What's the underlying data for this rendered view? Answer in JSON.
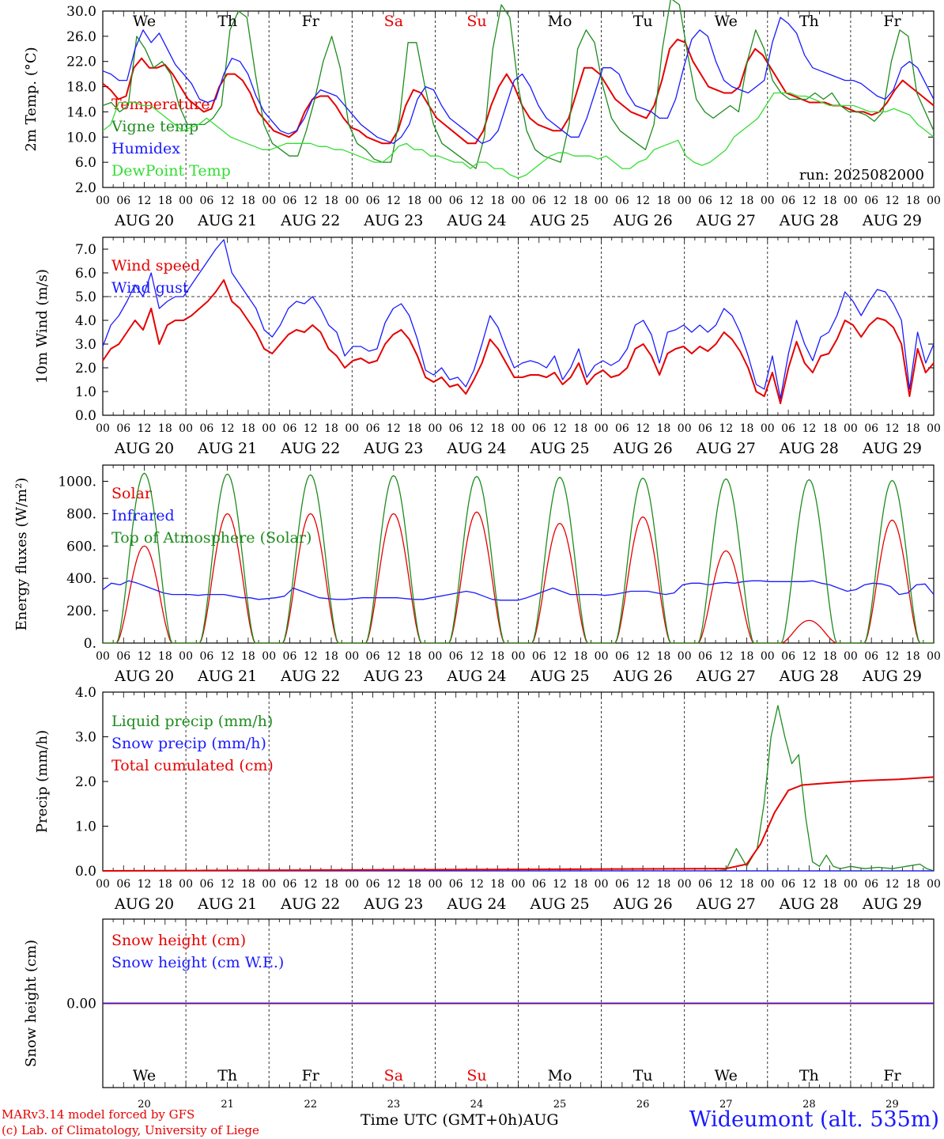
{
  "days": [
    "AUG 20",
    "AUG 21",
    "AUG 22",
    "AUG 23",
    "AUG 24",
    "AUG 25",
    "AUG 26",
    "AUG 27",
    "AUG 28",
    "AUG 29"
  ],
  "day_abbrev": [
    "We",
    "Th",
    "Fr",
    "Sa",
    "Su",
    "Mo",
    "Tu",
    "We",
    "Th",
    "Fr"
  ],
  "day_numbers": [
    "20",
    "21",
    "22",
    "23",
    "24",
    "25",
    "26",
    "27",
    "28",
    "29"
  ],
  "hour_ticks": [
    "00",
    "06",
    "12",
    "18"
  ],
  "last_tick": "00",
  "month_label": "AUG",
  "run_label": "run: 2025082000",
  "footer": {
    "credit_line1": "MARv3.14 model forced by GFS",
    "credit_line2": "(c) Lab. of Climatology, University of Liege",
    "xaxis_title": "Time UTC (GMT+0h)",
    "station": "Wideumont (alt. 535m)"
  },
  "colors": {
    "red": "#e60000",
    "green": "#1e8c1e",
    "blue": "#1a1aff",
    "lightgreen": "#33dd33",
    "weekend": "#e60000"
  },
  "chart_data": [
    {
      "type": "line",
      "ylabel": "2m Temp. (°C)",
      "ylim": [
        2,
        30
      ],
      "yticks": [
        "2.0",
        "6.0",
        "10.0",
        "14.0",
        "18.0",
        "22.0",
        "26.0",
        "30.0"
      ],
      "x": "hours since AUG 20 00 UTC, every 3h",
      "series": [
        {
          "name": "Temperature",
          "color": "red",
          "values": [
            18.5,
            17.5,
            16,
            16.5,
            21,
            22.5,
            21,
            21,
            21.5,
            20,
            18,
            16,
            15,
            14,
            14.5,
            18,
            20,
            20,
            19,
            17,
            14,
            12.5,
            11,
            10.5,
            10,
            11,
            14,
            16,
            16.5,
            16.5,
            15,
            13,
            11.5,
            11,
            10,
            9.5,
            9,
            9,
            11,
            15,
            17.5,
            17,
            15,
            13,
            12,
            11,
            10,
            9,
            9,
            11,
            15,
            18,
            20,
            18,
            15,
            13,
            12,
            11.5,
            11,
            11,
            13,
            17,
            21,
            21,
            20,
            18,
            16,
            15,
            14,
            13.5,
            13,
            15,
            19,
            24,
            25.5,
            25,
            22,
            20,
            18,
            17.5,
            17,
            17,
            18,
            22,
            24,
            23,
            21,
            19,
            17,
            16.5,
            16,
            15.5,
            15.5,
            15.5,
            15,
            15,
            14.5,
            14,
            14,
            13.5,
            14,
            15.5,
            17.5,
            19,
            18,
            17,
            16,
            15
          ]
        },
        {
          "name": "Vigne temp",
          "color": "green",
          "values": [
            15,
            15.5,
            14,
            15,
            26,
            24,
            21,
            22,
            20,
            15,
            12,
            12,
            12,
            13,
            15,
            27,
            30,
            29,
            20,
            12,
            9,
            8,
            7,
            7,
            11,
            16,
            22,
            26,
            21,
            12,
            9,
            8,
            6.5,
            6,
            6,
            13,
            25,
            25,
            18,
            12,
            9,
            8,
            7,
            6,
            5,
            10,
            24,
            31,
            29,
            18,
            11,
            8,
            7,
            6.5,
            6,
            12,
            24,
            27,
            25,
            18,
            13,
            11,
            10,
            9,
            8,
            12,
            24,
            32,
            31,
            23,
            16,
            14,
            13,
            14,
            15,
            14,
            22,
            27,
            24,
            19,
            17,
            16,
            16,
            16,
            17,
            16,
            17,
            15,
            14,
            14,
            13.5,
            12.5,
            14,
            22,
            27,
            26,
            17,
            14,
            11
          ]
        },
        {
          "name": "Humidex",
          "color": "blue",
          "values": [
            20.5,
            20,
            19,
            19,
            24,
            27,
            25,
            26.5,
            24,
            21.5,
            20,
            18.5,
            16,
            15.5,
            16,
            20,
            22.5,
            22,
            20,
            16.5,
            14,
            12.5,
            11,
            10.5,
            11,
            13,
            16,
            17.5,
            17,
            16.5,
            15,
            13.5,
            12,
            11,
            10,
            9.5,
            9,
            10,
            12,
            16,
            18,
            17.5,
            15,
            13,
            12,
            11,
            10,
            9,
            9.5,
            11,
            15,
            19,
            20,
            18,
            15,
            13,
            12,
            11,
            10,
            10,
            13,
            17,
            21,
            21,
            20,
            17,
            15,
            14.5,
            14,
            13,
            13,
            16,
            21,
            25.5,
            27,
            26,
            22,
            19,
            18,
            17.5,
            17,
            18,
            19,
            25,
            29,
            28,
            26.5,
            23,
            21,
            20.5,
            20,
            19.5,
            19,
            19,
            18.5,
            17.5,
            16.5,
            16,
            17.5,
            21,
            22,
            21,
            18.5,
            16
          ]
        },
        {
          "name": "DewPoint Temp",
          "color": "lightgreen",
          "values": [
            11,
            12,
            15.5,
            15.5,
            15.5,
            15,
            15,
            14,
            13,
            12,
            11,
            11.5,
            12,
            13,
            12,
            11,
            10,
            9.5,
            9,
            8.5,
            8,
            8,
            8.5,
            9,
            9,
            9,
            9,
            8.5,
            8.5,
            8,
            8,
            7.5,
            7,
            6.5,
            6,
            6,
            7,
            8.5,
            9,
            8,
            8,
            7,
            7,
            6.5,
            6,
            6,
            5,
            6,
            6,
            5,
            5,
            4,
            3.5,
            4,
            5,
            6,
            7,
            7.5,
            7.5,
            7,
            7,
            7,
            6.5,
            7,
            6,
            5,
            5,
            6,
            6.5,
            8,
            8.5,
            9,
            9.5,
            7,
            6,
            5.5,
            6,
            7,
            8,
            10,
            11,
            12,
            13,
            15,
            17,
            17,
            17,
            16.5,
            16.5,
            16,
            15.5,
            15,
            15,
            15,
            15,
            14.5,
            14,
            14,
            14,
            14.5,
            14,
            13.5,
            12,
            11,
            10
          ]
        }
      ]
    },
    {
      "type": "line",
      "ylabel": "10m Wind (m/s)",
      "ylim": [
        0,
        7.5
      ],
      "yticks": [
        "0.0",
        "1.0",
        "2.0",
        "3.0",
        "4.0",
        "5.0",
        "6.0",
        "7.0"
      ],
      "reference_line": 5.0,
      "series": [
        {
          "name": "Wind speed",
          "color": "red",
          "values": [
            2.3,
            2.8,
            3.0,
            3.5,
            4.0,
            3.6,
            4.5,
            3.0,
            3.8,
            4.0,
            4.0,
            4.2,
            4.5,
            4.8,
            5.2,
            5.7,
            4.8,
            4.5,
            4.0,
            3.5,
            2.8,
            2.6,
            3.0,
            3.4,
            3.6,
            3.5,
            3.8,
            3.5,
            2.8,
            2.5,
            2.0,
            2.3,
            2.4,
            2.2,
            2.3,
            3.0,
            3.4,
            3.6,
            3.2,
            2.5,
            1.6,
            1.4,
            1.6,
            1.2,
            1.3,
            0.9,
            1.5,
            2.2,
            3.2,
            2.8,
            2.2,
            1.6,
            1.6,
            1.7,
            1.7,
            1.6,
            1.8,
            1.3,
            1.6,
            2.2,
            1.3,
            1.7,
            1.9,
            1.6,
            1.7,
            2.0,
            2.8,
            3.0,
            2.5,
            1.7,
            2.6,
            2.8,
            2.9,
            2.6,
            2.9,
            2.7,
            3.0,
            3.5,
            3.2,
            2.7,
            2.0,
            1.0,
            0.8,
            1.8,
            0.5,
            2.0,
            3.1,
            2.2,
            1.8,
            2.5,
            2.6,
            3.2,
            4.0,
            3.8,
            3.3,
            3.8,
            4.1,
            4.0,
            3.7,
            3.0,
            0.8,
            2.8,
            1.8,
            2.2
          ]
        },
        {
          "name": "Wind gust",
          "color": "blue",
          "values": [
            2.9,
            3.8,
            4.2,
            4.8,
            5.5,
            5.0,
            6.0,
            4.5,
            4.8,
            5.0,
            5.0,
            5.5,
            6.0,
            6.5,
            7.0,
            7.4,
            6.0,
            5.5,
            5.0,
            4.5,
            3.6,
            3.3,
            3.8,
            4.5,
            4.8,
            4.7,
            5.0,
            4.5,
            3.8,
            3.5,
            2.5,
            2.9,
            2.9,
            2.7,
            2.8,
            3.9,
            4.5,
            4.7,
            4.2,
            3.2,
            1.9,
            1.7,
            2.0,
            1.5,
            1.6,
            1.2,
            1.9,
            3.0,
            4.2,
            3.7,
            2.8,
            2.0,
            2.2,
            2.3,
            2.2,
            2.0,
            2.5,
            1.5,
            2.0,
            2.8,
            1.6,
            2.1,
            2.3,
            2.1,
            2.3,
            2.8,
            3.8,
            4.0,
            3.4,
            2.2,
            3.5,
            3.6,
            3.8,
            3.5,
            3.8,
            3.5,
            3.8,
            4.5,
            4.2,
            3.5,
            2.5,
            1.3,
            1.1,
            2.5,
            0.7,
            2.6,
            4.0,
            3.0,
            2.3,
            3.3,
            3.5,
            4.2,
            5.2,
            4.8,
            4.2,
            4.8,
            5.3,
            5.2,
            4.7,
            4.0,
            1.1,
            3.5,
            2.2,
            3.0
          ]
        }
      ]
    },
    {
      "type": "line",
      "ylabel": "Energy fluxes (W/m²)",
      "ylim": [
        0,
        1100
      ],
      "yticks": [
        "0.",
        "200.",
        "400.",
        "600.",
        "800.",
        "1000."
      ],
      "series": [
        {
          "name": "Solar",
          "color": "red",
          "peaks": [
            600,
            800,
            800,
            800,
            810,
            740,
            780,
            570,
            140,
            760
          ]
        },
        {
          "name": "Infrared",
          "color": "blue",
          "values": [
            330,
            370,
            360,
            385,
            370,
            350,
            330,
            310,
            300,
            300,
            300,
            295,
            300,
            300,
            300,
            290,
            280,
            280,
            270,
            275,
            280,
            290,
            340,
            320,
            300,
            280,
            275,
            270,
            270,
            275,
            280,
            280,
            280,
            280,
            280,
            275,
            270,
            270,
            280,
            290,
            300,
            310,
            320,
            310,
            290,
            270,
            265,
            265,
            265,
            280,
            300,
            320,
            340,
            320,
            300,
            300,
            300,
            300,
            295,
            300,
            310,
            320,
            320,
            320,
            310,
            300,
            310,
            360,
            370,
            370,
            360,
            370,
            375,
            370,
            380,
            385,
            385,
            380,
            380,
            380,
            380,
            380,
            385,
            370,
            360,
            340,
            320,
            330,
            360,
            370,
            365,
            350,
            300,
            310,
            360,
            365,
            300
          ]
        },
        {
          "name": "Top of Atmosphere (Solar)",
          "color": "green",
          "peaks": [
            1050,
            1045,
            1040,
            1035,
            1030,
            1025,
            1020,
            1015,
            1010,
            1005
          ]
        }
      ]
    },
    {
      "type": "line",
      "ylabel": "Precip (mm/h)",
      "ylim": [
        0,
        4.0
      ],
      "yticks": [
        "0.0",
        "1.0",
        "2.0",
        "3.0",
        "4.0"
      ],
      "series": [
        {
          "name": "Liquid precip (mm/h)",
          "color": "green",
          "values": [
            [
              177,
              0.0
            ],
            [
              180,
              0.02
            ],
            [
              183,
              0.5
            ],
            [
              186,
              0.1
            ],
            [
              189,
              0.5
            ],
            [
              191,
              1.5
            ],
            [
              193,
              3.0
            ],
            [
              195,
              3.7
            ],
            [
              197,
              3.0
            ],
            [
              199,
              2.4
            ],
            [
              201,
              2.6
            ],
            [
              203,
              1.2
            ],
            [
              205,
              0.2
            ],
            [
              207,
              0.1
            ],
            [
              209,
              0.35
            ],
            [
              211,
              0.1
            ],
            [
              213,
              0.05
            ],
            [
              216,
              0.1
            ],
            [
              220,
              0.05
            ],
            [
              224,
              0.08
            ],
            [
              228,
              0.05
            ],
            [
              232,
              0.1
            ],
            [
              236,
              0.15
            ],
            [
              238,
              0.05
            ],
            [
              240,
              0.0
            ]
          ]
        },
        {
          "name": "Snow precip (mm/h)",
          "color": "blue",
          "values": [
            [
              0,
              0
            ],
            [
              240,
              0
            ]
          ]
        },
        {
          "name": "Total cumulated (cm)",
          "color": "red",
          "values": [
            [
              0,
              0.0
            ],
            [
              180,
              0.05
            ],
            [
              186,
              0.15
            ],
            [
              190,
              0.6
            ],
            [
              194,
              1.3
            ],
            [
              198,
              1.8
            ],
            [
              202,
              1.92
            ],
            [
              210,
              1.97
            ],
            [
              220,
              2.02
            ],
            [
              230,
              2.05
            ],
            [
              240,
              2.1
            ]
          ]
        }
      ]
    },
    {
      "type": "line",
      "ylabel": "Snow height (cm)",
      "yticks": [
        "0.00"
      ],
      "series": [
        {
          "name": "Snow height (cm)",
          "color": "red",
          "values": [
            [
              0,
              0
            ],
            [
              240,
              0
            ]
          ]
        },
        {
          "name": "Snow height (cm W.E.)",
          "color": "blue",
          "values": [
            [
              0,
              0
            ],
            [
              240,
              0
            ]
          ]
        }
      ]
    }
  ]
}
